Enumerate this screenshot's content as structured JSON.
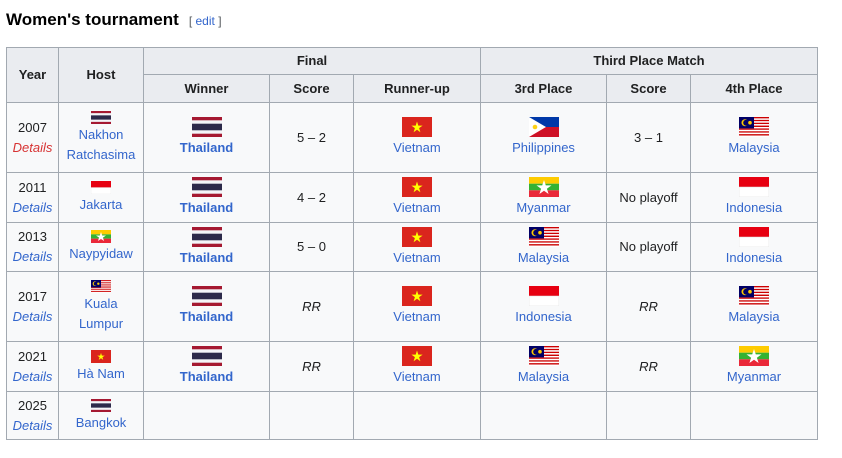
{
  "section": {
    "title": "Women's tournament",
    "edit_open": "[",
    "edit_label": "edit",
    "edit_close": "]"
  },
  "headers": {
    "year": "Year",
    "host": "Host",
    "final": "Final",
    "third": "Third Place Match",
    "winner": "Winner",
    "score": "Score",
    "runner_up": "Runner-up",
    "third_place": "3rd Place",
    "score2": "Score",
    "fourth_place": "4th Place"
  },
  "colors": {
    "link": "#3366cc",
    "redlink": "#d73333",
    "header_bg": "#eaecf0",
    "border": "#a2a9b1"
  },
  "rows": [
    {
      "year": "2007",
      "details": "Details",
      "details_redlink": true,
      "host_flag": "thailand",
      "host": [
        "Nakhon",
        "Ratchasima"
      ],
      "winner_flag": "thailand",
      "winner": "Thailand",
      "score": "5 – 2",
      "runner_flag": "vietnam",
      "runner": "Vietnam",
      "third_flag": "philippines",
      "third": "Philippines",
      "score2": "3 – 1",
      "fourth_flag": "malaysia",
      "fourth": "Malaysia"
    },
    {
      "year": "2011",
      "details": "Details",
      "host_flag": "indonesia",
      "host": [
        "Jakarta"
      ],
      "winner_flag": "thailand",
      "winner": "Thailand",
      "score": "4 – 2",
      "runner_flag": "vietnam",
      "runner": "Vietnam",
      "third_flag": "myanmar",
      "third": "Myanmar",
      "score2": "No playoff",
      "fourth_flag": "indonesia",
      "fourth": "Indonesia"
    },
    {
      "year": "2013",
      "details": "Details",
      "host_flag": "myanmar",
      "host": [
        "Naypyidaw"
      ],
      "winner_flag": "thailand",
      "winner": "Thailand",
      "score": "5 – 0",
      "runner_flag": "vietnam",
      "runner": "Vietnam",
      "third_flag": "malaysia",
      "third": "Malaysia",
      "score2": "No playoff",
      "fourth_flag": "indonesia",
      "fourth": "Indonesia"
    },
    {
      "year": "2017",
      "details": "Details",
      "host_flag": "malaysia",
      "host": [
        "Kuala",
        "Lumpur"
      ],
      "winner_flag": "thailand",
      "winner": "Thailand",
      "score": "RR",
      "score_italic": true,
      "runner_flag": "vietnam",
      "runner": "Vietnam",
      "third_flag": "indonesia",
      "third": "Indonesia",
      "score2": "RR",
      "score2_italic": true,
      "fourth_flag": "malaysia",
      "fourth": "Malaysia"
    },
    {
      "year": "2021",
      "details": "Details",
      "host_flag": "vietnam",
      "host": [
        "Hà Nam"
      ],
      "winner_flag": "thailand",
      "winner": "Thailand",
      "score": "RR",
      "score_italic": true,
      "runner_flag": "vietnam",
      "runner": "Vietnam",
      "third_flag": "malaysia",
      "third": "Malaysia",
      "score2": "RR",
      "score2_italic": true,
      "fourth_flag": "myanmar",
      "fourth": "Myanmar"
    },
    {
      "year": "2025",
      "details": "Details",
      "host_flag": "thailand",
      "host": [
        "Bangkok"
      ]
    }
  ]
}
